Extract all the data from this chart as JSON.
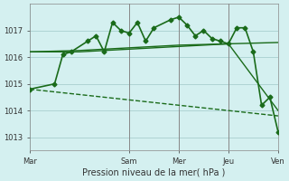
{
  "background_color": "#d4f0f0",
  "grid_color": "#a0c8c8",
  "line_color": "#1a6b1a",
  "xlabel": "Pression niveau de la mer( hPa )",
  "ylim": [
    1012.5,
    1018.0
  ],
  "yticks": [
    1013,
    1014,
    1015,
    1016,
    1017
  ],
  "xtick_labels": [
    "Mar",
    "Sam",
    "Mer",
    "Jeu",
    "Ven"
  ],
  "xtick_positions": [
    0,
    12,
    18,
    24,
    30
  ],
  "series": [
    {
      "x": [
        0,
        3,
        4,
        5,
        7,
        8,
        9,
        10,
        11,
        12,
        13,
        14,
        15,
        17,
        18,
        19,
        20,
        21,
        22,
        23,
        24,
        25,
        26,
        27,
        28,
        29,
        30
      ],
      "y": [
        1014.8,
        1015.0,
        1016.1,
        1016.2,
        1016.6,
        1016.8,
        1016.2,
        1017.3,
        1017.0,
        1016.9,
        1017.3,
        1016.6,
        1017.1,
        1017.4,
        1017.5,
        1017.2,
        1016.8,
        1017.0,
        1016.7,
        1016.6,
        1016.5,
        1017.1,
        1017.1,
        1016.2,
        1014.2,
        1014.5,
        1013.2
      ],
      "marker": "D",
      "markersize": 2.5,
      "linewidth": 1.2
    },
    {
      "x": [
        0,
        6,
        12,
        18,
        24,
        30
      ],
      "y": [
        1016.2,
        1016.2,
        1016.3,
        1016.4,
        1016.5,
        1014.0
      ],
      "marker": null,
      "linewidth": 1.0
    },
    {
      "x": [
        0,
        6,
        12,
        18,
        24,
        30
      ],
      "y": [
        1016.2,
        1016.25,
        1016.35,
        1016.45,
        1016.5,
        1016.55
      ],
      "marker": null,
      "linewidth": 1.0
    },
    {
      "x": [
        0,
        30
      ],
      "y": [
        1014.8,
        1013.8
      ],
      "marker": null,
      "linewidth": 1.0,
      "linestyle": "dashed"
    }
  ],
  "vline_positions": [
    12,
    18,
    24,
    30
  ],
  "vline_color": "#888888"
}
